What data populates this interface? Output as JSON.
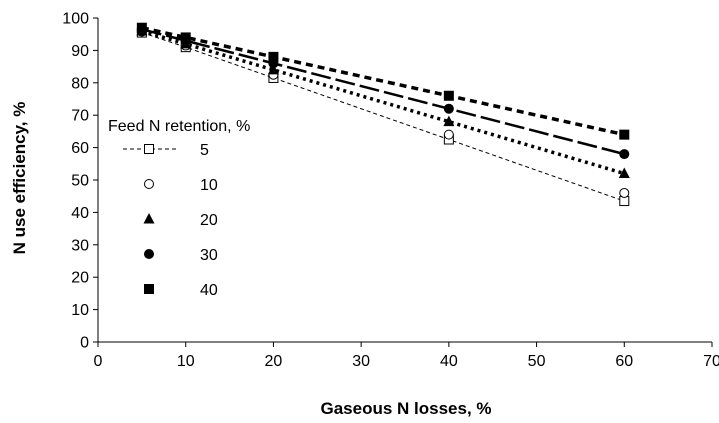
{
  "chart_data": {
    "type": "line",
    "title": "",
    "xlabel": "Gaseous N losses, %",
    "ylabel": "N use efficiency, %",
    "xlim": [
      0,
      70
    ],
    "ylim": [
      0,
      100
    ],
    "xticks": [
      "0",
      "10",
      "20",
      "30",
      "40",
      "50",
      "60",
      "70"
    ],
    "yticks": [
      "0",
      "10",
      "20",
      "30",
      "40",
      "50",
      "60",
      "70",
      "80",
      "90",
      "100"
    ],
    "grid": false,
    "legend": {
      "title": "Feed N retention, %",
      "placement": "middle-left"
    },
    "x": [
      5,
      10,
      20,
      40,
      60
    ],
    "series": [
      {
        "name": "5",
        "marker": "open-square",
        "line": "thin-dashed",
        "values": [
          95.5,
          91,
          81.5,
          62.5,
          43.5
        ]
      },
      {
        "name": "10",
        "marker": "open-circle",
        "line": "none",
        "values": [
          95.8,
          91.5,
          82.5,
          64,
          46
        ]
      },
      {
        "name": "20",
        "marker": "filled-triangle",
        "line": "dotted",
        "values": [
          96,
          92,
          84,
          68,
          52
        ]
      },
      {
        "name": "30",
        "marker": "filled-circle",
        "line": "long-dash",
        "values": [
          96.5,
          93,
          86,
          72,
          58
        ]
      },
      {
        "name": "40",
        "marker": "filled-square",
        "line": "heavy-dashed",
        "values": [
          97,
          94,
          88,
          76,
          64
        ]
      }
    ]
  }
}
